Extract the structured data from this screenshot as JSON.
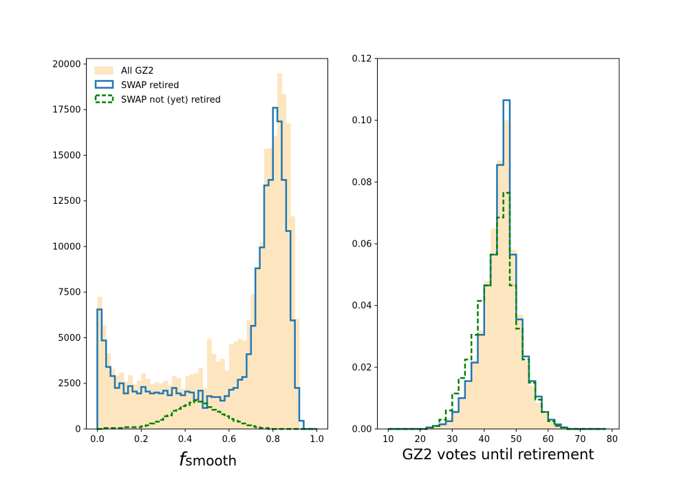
{
  "chart_data": [
    {
      "type": "histogram",
      "xlabel_main": "f",
      "xlabel_sub": "smooth",
      "ylabel": "",
      "xlim": [
        -0.05,
        1.05
      ],
      "ylim": [
        0,
        20300
      ],
      "xticks": [
        0.0,
        0.2,
        0.4,
        0.6,
        0.8,
        1.0
      ],
      "xtick_labels": [
        "0.0",
        "0.2",
        "0.4",
        "0.6",
        "0.8",
        "1.0"
      ],
      "yticks": [
        0,
        2500,
        5000,
        7500,
        10000,
        12500,
        15000,
        17500,
        20000
      ],
      "ytick_labels": [
        "0",
        "2500",
        "5000",
        "7500",
        "10000",
        "12500",
        "15000",
        "17500",
        "20000"
      ],
      "legend_position": "top-left",
      "legend": [
        {
          "label": "All GZ2",
          "style": "filled",
          "color": "#fde6bf"
        },
        {
          "label": "SWAP retired",
          "style": "step-solid",
          "color": "#1f77b4"
        },
        {
          "label": "SWAP not (yet) retired",
          "style": "step-dashed",
          "color": "#008000"
        }
      ],
      "bin_edges": [
        0.0,
        0.02,
        0.04,
        0.06,
        0.08,
        0.1,
        0.12,
        0.14,
        0.16,
        0.18,
        0.2,
        0.22,
        0.24,
        0.26,
        0.28,
        0.3,
        0.32,
        0.34,
        0.36,
        0.38,
        0.4,
        0.42,
        0.44,
        0.46,
        0.48,
        0.5,
        0.52,
        0.54,
        0.56,
        0.58,
        0.6,
        0.62,
        0.64,
        0.66,
        0.68,
        0.7,
        0.72,
        0.74,
        0.76,
        0.78,
        0.8,
        0.82,
        0.84,
        0.86,
        0.88,
        0.9,
        0.92,
        0.94,
        0.96,
        0.98,
        1.0
      ],
      "series": [
        {
          "name": "All GZ2",
          "style": "filled",
          "color": "#fde6bf",
          "values": [
            7250,
            5700,
            4150,
            3300,
            2900,
            3100,
            2600,
            2950,
            2450,
            2650,
            3050,
            2750,
            2450,
            2550,
            2500,
            2650,
            2400,
            2900,
            2800,
            2200,
            2900,
            3000,
            3050,
            3350,
            2250,
            4950,
            4100,
            3700,
            3850,
            3200,
            4650,
            4800,
            4950,
            4850,
            5950,
            7400,
            8850,
            10250,
            15350,
            15400,
            16050,
            19500,
            18350,
            16750,
            11650,
            6050,
            0,
            0,
            0,
            0
          ]
        },
        {
          "name": "SWAP retired",
          "style": "step-solid",
          "color": "#1f77b4",
          "values": [
            6550,
            4850,
            3400,
            2900,
            2250,
            2500,
            1950,
            2350,
            2050,
            1950,
            2300,
            2050,
            1950,
            2000,
            1950,
            2100,
            1850,
            2250,
            1950,
            1850,
            2050,
            2000,
            1600,
            2100,
            1150,
            1800,
            1750,
            1750,
            1550,
            1800,
            2150,
            2250,
            2700,
            2850,
            4100,
            5650,
            8800,
            9950,
            13350,
            13650,
            17600,
            16850,
            13650,
            10850,
            5950,
            2250,
            450,
            0,
            0,
            0
          ]
        },
        {
          "name": "SWAP not (yet) retired",
          "style": "step-dashed",
          "color": "#008000",
          "values": [
            0,
            50,
            50,
            50,
            50,
            50,
            100,
            100,
            100,
            100,
            150,
            200,
            300,
            400,
            500,
            700,
            750,
            1000,
            1100,
            1250,
            1300,
            1450,
            1550,
            1500,
            1400,
            1200,
            1050,
            950,
            800,
            700,
            550,
            450,
            400,
            300,
            200,
            150,
            100,
            50,
            50,
            0,
            0,
            0,
            0,
            0,
            0,
            0,
            0,
            0,
            0,
            0
          ]
        }
      ]
    },
    {
      "type": "histogram",
      "xlabel": "GZ2 votes until retirement",
      "ylabel": "",
      "xlim": [
        6.6,
        82.2
      ],
      "ylim": [
        0,
        0.12
      ],
      "xticks": [
        10,
        20,
        30,
        40,
        50,
        60,
        70,
        80
      ],
      "xtick_labels": [
        "10",
        "20",
        "30",
        "40",
        "50",
        "60",
        "70",
        "80"
      ],
      "yticks": [
        0.0,
        0.02,
        0.04,
        0.06,
        0.08,
        0.1,
        0.12
      ],
      "ytick_labels": [
        "0.00",
        "0.02",
        "0.04",
        "0.06",
        "0.08",
        "0.10",
        "0.12"
      ],
      "bin_edges": [
        10,
        12,
        14,
        16,
        18,
        20,
        22,
        24,
        26,
        28,
        30,
        32,
        34,
        36,
        38,
        40,
        42,
        44,
        46,
        48,
        50,
        52,
        54,
        56,
        58,
        60,
        62,
        64,
        66,
        68,
        70,
        72,
        74,
        76,
        78
      ],
      "series": [
        {
          "name": "All GZ2",
          "style": "filled",
          "color": "#fde6bf",
          "values": [
            0,
            0,
            0,
            0,
            0,
            0,
            0.0005,
            0.001,
            0.002,
            0.0035,
            0.006,
            0.01,
            0.015,
            0.022,
            0.032,
            0.048,
            0.065,
            0.087,
            0.1,
            0.058,
            0.037,
            0.022,
            0.014,
            0.0085,
            0.005,
            0.0025,
            0.001,
            0.0005,
            0,
            0,
            0,
            0,
            0,
            0
          ]
        },
        {
          "name": "SWAP retired",
          "style": "step-solid",
          "color": "#1f77b4",
          "values": [
            0,
            0,
            0,
            0,
            0,
            0,
            0.0005,
            0.001,
            0.0015,
            0.0025,
            0.0055,
            0.01,
            0.0155,
            0.0215,
            0.0305,
            0.0465,
            0.0565,
            0.0855,
            0.1065,
            0.0565,
            0.0355,
            0.0235,
            0.0155,
            0.0105,
            0.0055,
            0.003,
            0.0015,
            0.0005,
            0,
            0,
            0,
            0,
            0,
            0
          ]
        },
        {
          "name": "SWAP not (yet) retired",
          "style": "step-dashed",
          "color": "#008000",
          "values": [
            0,
            0,
            0,
            0,
            0,
            0,
            0.0005,
            0.001,
            0.003,
            0.006,
            0.0115,
            0.0165,
            0.0225,
            0.0305,
            0.0415,
            0.0465,
            0.0565,
            0.0685,
            0.0765,
            0.0465,
            0.0325,
            0.0225,
            0.015,
            0.0095,
            0.0055,
            0.0025,
            0.001,
            0.0005,
            0,
            0,
            0,
            0,
            0,
            0
          ]
        }
      ]
    }
  ]
}
